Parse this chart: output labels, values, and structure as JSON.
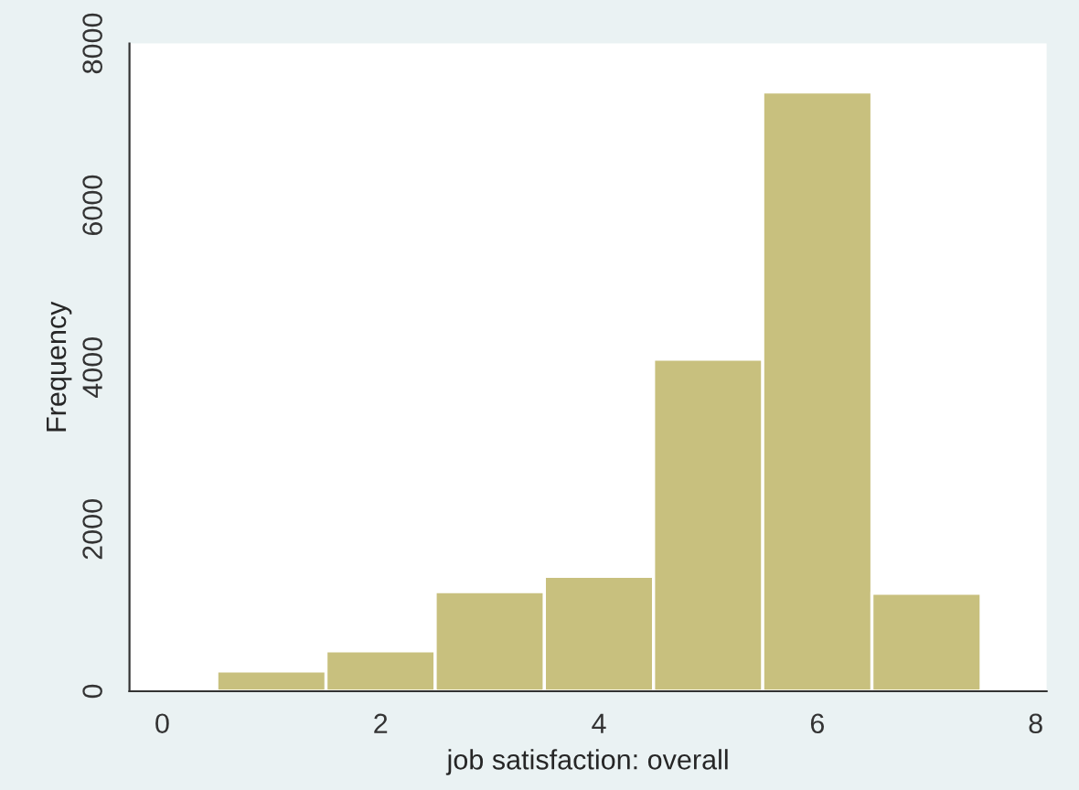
{
  "chart_data": {
    "type": "histogram",
    "xlabel": "job satisfaction: overall",
    "ylabel": "Frequency",
    "bins": [
      0.5,
      1.5,
      2.5,
      3.5,
      4.5,
      5.5,
      6.5,
      7.5
    ],
    "values": [
      250,
      500,
      1230,
      1420,
      4100,
      7400,
      1210
    ],
    "color": "#c8c07e",
    "xlim": [
      -0.3,
      8.1
    ],
    "xticks": [
      0,
      2,
      4,
      6,
      8
    ],
    "ylim": [
      0,
      8000
    ],
    "yticks": [
      0,
      2000,
      4000,
      6000,
      8000
    ],
    "grid": false
  }
}
